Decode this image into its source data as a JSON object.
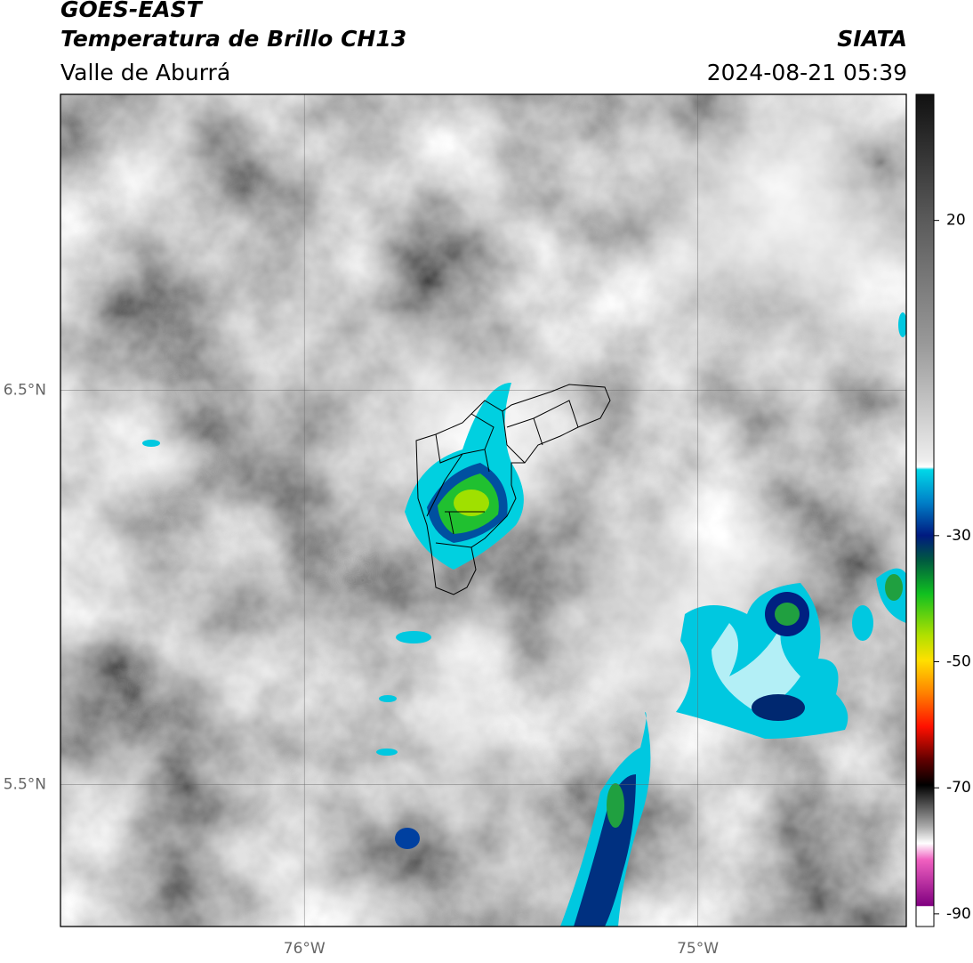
{
  "header": {
    "title": "GOES-EAST",
    "subtitle": "Temperatura de Brillo CH13",
    "region": "Valle de Aburrá",
    "source": "SIATA",
    "timestamp": "2024-08-21 05:39"
  },
  "map": {
    "xlim": [
      -76.62,
      -74.47
    ],
    "ylim": [
      5.14,
      7.25
    ],
    "grid": true,
    "xticks": [
      {
        "value": -76,
        "label": "76°W"
      },
      {
        "value": -75,
        "label": "75°W"
      }
    ],
    "yticks": [
      {
        "value": 6.5,
        "label": "6.5°N"
      },
      {
        "value": 5.5,
        "label": "5.5°N"
      }
    ]
  },
  "colorbar": {
    "lim": [
      -92,
      40
    ],
    "ticks": [
      20,
      -30,
      -50,
      -70,
      -90
    ]
  }
}
